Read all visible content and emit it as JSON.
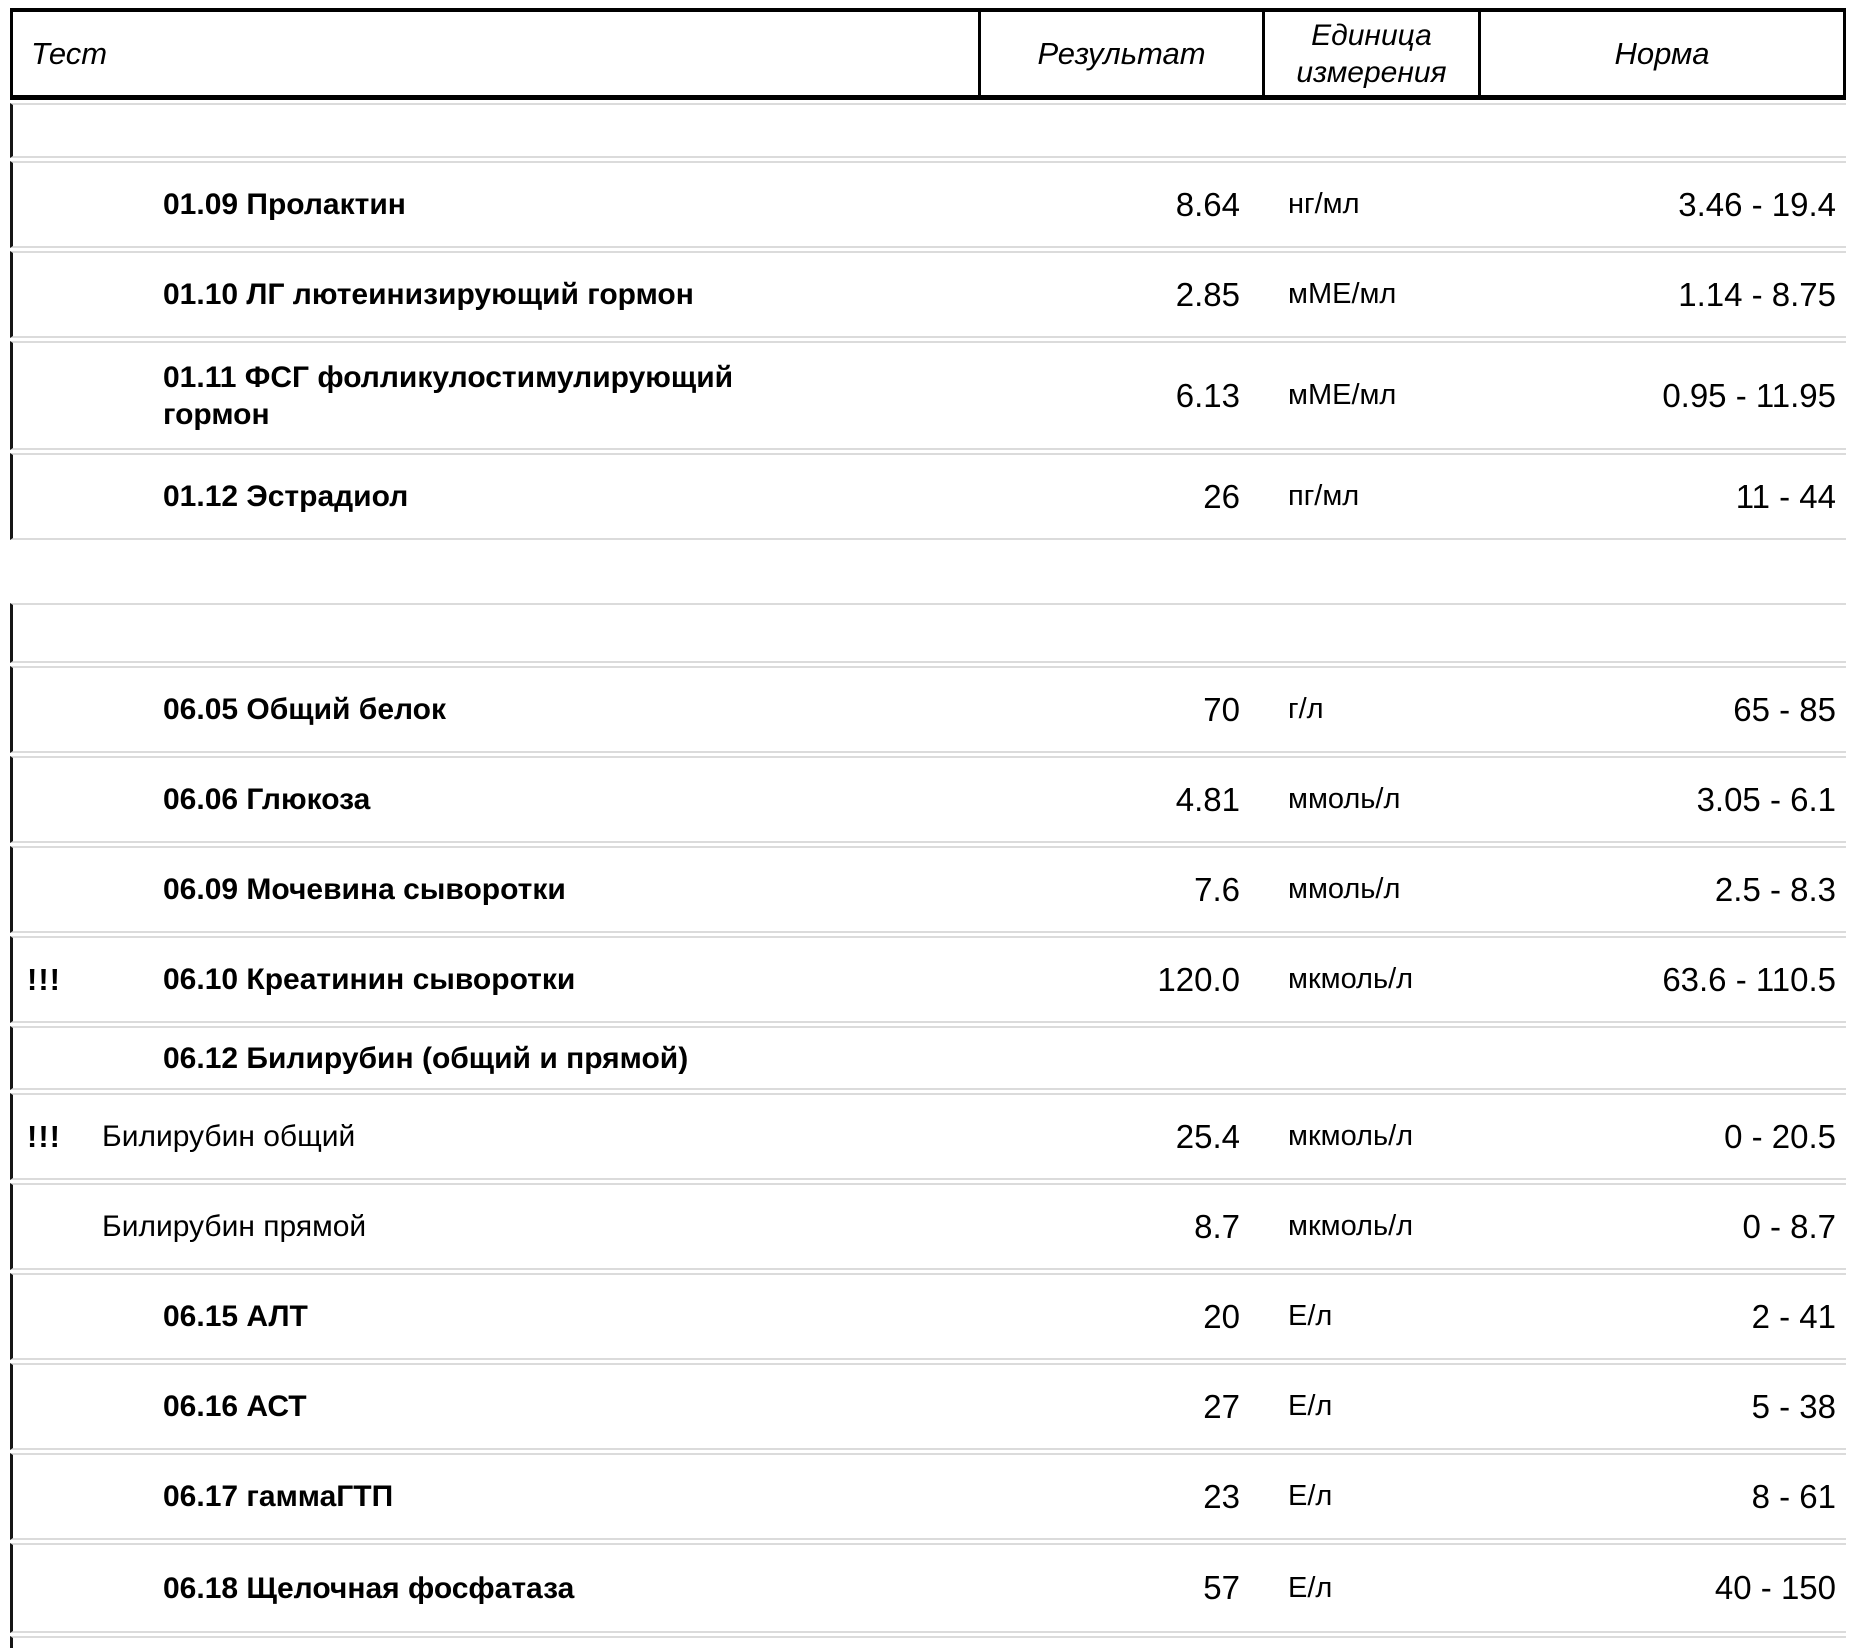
{
  "header": {
    "test": "Тест",
    "result": "Результат",
    "unit": "Единица\nизмерения",
    "norm": "Норма"
  },
  "sections": [
    {
      "rows": [
        {
          "marker": "",
          "name": "01.09 Пролактин",
          "type": "test",
          "result": "8.64",
          "unit": "нг/мл",
          "norm": "3.46 - 19.4"
        },
        {
          "marker": "",
          "name": "01.10 ЛГ лютеинизирующий гормон",
          "type": "test",
          "result": "2.85",
          "unit": "мМЕ/мл",
          "norm": "1.14 - 8.75"
        },
        {
          "marker": "",
          "name": "01.11 ФСГ фолликулостимулирующий гормон",
          "type": "test",
          "result": "6.13",
          "unit": "мМЕ/мл",
          "norm": "0.95 - 11.95"
        },
        {
          "marker": "",
          "name": "01.12 Эстрадиол",
          "type": "test",
          "result": "26",
          "unit": "пг/мл",
          "norm": "11 - 44"
        }
      ]
    },
    {
      "rows": [
        {
          "marker": "",
          "name": "06.05 Общий белок",
          "type": "test",
          "result": "70",
          "unit": "г/л",
          "norm": "65 - 85"
        },
        {
          "marker": "",
          "name": "06.06 Глюкоза",
          "type": "test",
          "result": "4.81",
          "unit": "ммоль/л",
          "norm": "3.05 - 6.1"
        },
        {
          "marker": "",
          "name": "06.09 Мочевина сыворотки",
          "type": "test",
          "result": "7.6",
          "unit": "ммоль/л",
          "norm": "2.5 - 8.3"
        },
        {
          "marker": "!!!",
          "name": "06.10 Креатинин сыворотки",
          "type": "test",
          "result": "120.0",
          "unit": "мкмоль/л",
          "norm": "63.6 - 110.5"
        },
        {
          "marker": "",
          "name": "06.12 Билирубин (общий и прямой)",
          "type": "test",
          "result": "",
          "unit": "",
          "norm": ""
        },
        {
          "marker": "!!!",
          "name": "Билирубин общий",
          "type": "subtest",
          "result": "25.4",
          "unit": "мкмоль/л",
          "norm": "0 - 20.5"
        },
        {
          "marker": "",
          "name": "Билирубин прямой",
          "type": "subtest",
          "result": "8.7",
          "unit": "мкмоль/л",
          "norm": "0 - 8.7"
        },
        {
          "marker": "",
          "name": "06.15 АЛТ",
          "type": "test",
          "result": "20",
          "unit": "Е/л",
          "norm": "2 - 41"
        },
        {
          "marker": "",
          "name": "06.16 АСТ",
          "type": "test",
          "result": "27",
          "unit": "Е/л",
          "norm": "5 - 38"
        },
        {
          "marker": "",
          "name": "06.17 гаммаГТП",
          "type": "test",
          "result": "23",
          "unit": "Е/л",
          "norm": "8 - 61"
        },
        {
          "marker": "",
          "name": "06.18 Щелочная фосфатаза",
          "type": "test",
          "result": "57",
          "unit": "Е/л",
          "norm": "40 - 150"
        }
      ]
    }
  ],
  "colors": {
    "text": "#000000",
    "header_border": "#000000",
    "row_separator": "#dbdbdb",
    "row_left_border": "#151515",
    "background": "#ffffff"
  }
}
